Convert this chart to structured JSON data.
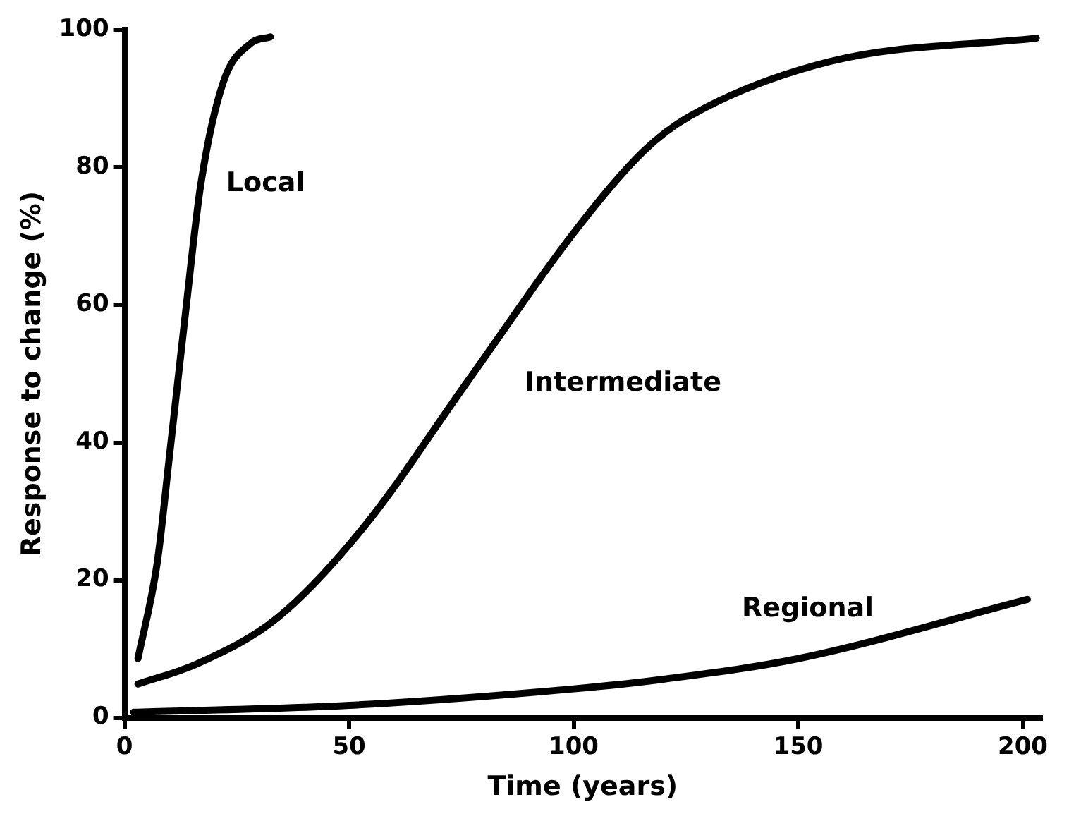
{
  "chart_data": {
    "type": "line",
    "xlabel": "Time (years)",
    "ylabel": "Response to change (%)",
    "xlim": [
      0,
      204
    ],
    "xticks": [
      0,
      50,
      100,
      150,
      200
    ],
    "ylim": [
      0,
      100
    ],
    "yticks": [
      0,
      20,
      40,
      60,
      80,
      100
    ],
    "grid": false,
    "legend": false,
    "marker": "none",
    "line_style": "solid",
    "series": [
      {
        "name": "Local",
        "color": "#000000",
        "x": [
          3,
          7.3,
          10,
          13.6,
          17,
          22,
          28,
          32.5
        ],
        "values": [
          8.6,
          22.6,
          38,
          59,
          77.6,
          92.4,
          98,
          99
        ]
      },
      {
        "name": "Intermediate",
        "color": "#000000",
        "x": [
          3,
          16.4,
          34,
          53,
          76.5,
          100.6,
          115.6,
          125.7,
          157,
          203
        ],
        "values": [
          4.9,
          7.9,
          14.5,
          27.5,
          49,
          71,
          82.4,
          87.4,
          95.4,
          98.8
        ]
      },
      {
        "name": "Regional",
        "color": "#000000",
        "x": [
          2,
          50,
          100,
          120,
          150,
          201
        ],
        "values": [
          0.8,
          1.8,
          4.2,
          5.6,
          8.6,
          17.2
        ]
      }
    ]
  }
}
